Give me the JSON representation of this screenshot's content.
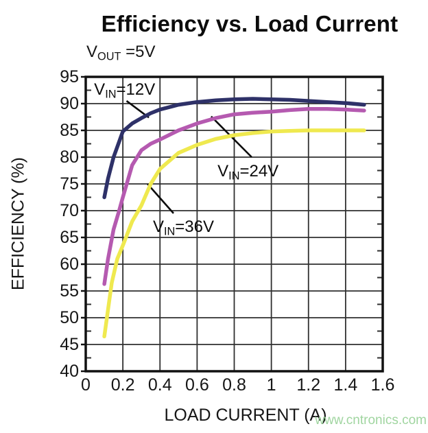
{
  "page": {
    "title": "Efficiency vs. Load Current",
    "subtitle": {
      "base": "V",
      "subscript": "OUT",
      "rest": " =5V"
    },
    "watermark": "www.cntronics.com"
  },
  "colors": {
    "vin12": "#2e3168",
    "vin24": "#b55ab0",
    "vin36": "#efe94f",
    "grid": "#2f2f2f",
    "axis_border": "#111111",
    "leader_line": "#0c0c0c",
    "text": "#161616",
    "watermark": "#a0d5a0"
  },
  "chart_data": {
    "type": "line",
    "title": "Efficiency vs. Load Current",
    "subtitle": "VOUT =5V",
    "xlabel": "LOAD CURRENT (A)",
    "ylabel": "EFFICIENCY (%)",
    "xlim": [
      0,
      1.6
    ],
    "ylim": [
      40,
      95
    ],
    "x_ticks": [
      0,
      0.2,
      0.4,
      0.6,
      0.8,
      1,
      1.2,
      1.4,
      1.6
    ],
    "x_tick_labels": [
      "0",
      "0.2",
      "0.4",
      "0.6",
      "0.8",
      "1",
      "1.2",
      "1.4",
      "1.6"
    ],
    "y_ticks": [
      95,
      90,
      85,
      80,
      75,
      70,
      65,
      60,
      55,
      50,
      45,
      40
    ],
    "grid": true,
    "legend_position": "inline-annotations",
    "series": [
      {
        "name": "VIN=12V",
        "label": {
          "base": "V",
          "subscript": "IN",
          "rest": "=12V"
        },
        "color": "#2e3168",
        "x": [
          0.1,
          0.12,
          0.15,
          0.2,
          0.25,
          0.3,
          0.35,
          0.4,
          0.5,
          0.6,
          0.7,
          0.8,
          0.9,
          1.0,
          1.1,
          1.2,
          1.3,
          1.4,
          1.5
        ],
        "y": [
          72.5,
          76.0,
          80.0,
          84.8,
          86.3,
          87.3,
          88.2,
          88.9,
          89.8,
          90.3,
          90.6,
          90.8,
          90.9,
          90.8,
          90.7,
          90.5,
          90.3,
          90.1,
          89.8
        ]
      },
      {
        "name": "VIN=24V",
        "label": {
          "base": "V",
          "subscript": "IN",
          "rest": "=24V"
        },
        "color": "#b55ab0",
        "x": [
          0.1,
          0.12,
          0.15,
          0.18,
          0.2,
          0.25,
          0.3,
          0.35,
          0.4,
          0.5,
          0.6,
          0.7,
          0.8,
          0.9,
          1.0,
          1.1,
          1.2,
          1.3,
          1.4,
          1.5
        ],
        "y": [
          56.3,
          61.0,
          66.5,
          70.0,
          72.5,
          78.5,
          81.3,
          82.5,
          83.3,
          85.0,
          86.3,
          87.3,
          88.0,
          88.3,
          88.5,
          88.8,
          89.0,
          89.0,
          88.9,
          88.7
        ]
      },
      {
        "name": "VIN=36V",
        "label": {
          "base": "V",
          "subscript": "IN",
          "rest": "=36V"
        },
        "color": "#efe94f",
        "x": [
          0.1,
          0.12,
          0.14,
          0.17,
          0.2,
          0.25,
          0.3,
          0.35,
          0.4,
          0.5,
          0.6,
          0.7,
          0.8,
          0.9,
          1.0,
          1.1,
          1.2,
          1.3,
          1.4,
          1.5
        ],
        "y": [
          46.5,
          51.5,
          56.5,
          61.0,
          63.5,
          68.0,
          71.0,
          75.0,
          77.8,
          80.8,
          82.3,
          83.4,
          84.1,
          84.5,
          84.8,
          84.9,
          85.0,
          85.0,
          85.0,
          85.0
        ]
      }
    ],
    "annotations": [
      {
        "series": "VIN=12V",
        "label_pos": {
          "x": 0.045,
          "y": 94.3
        },
        "leader": [
          [
            0.22,
            90.5
          ],
          [
            0.34,
            87.4
          ]
        ]
      },
      {
        "series": "VIN=24V",
        "label_pos": {
          "x": 0.71,
          "y": 79.1
        },
        "leader": [
          [
            0.676,
            87.6
          ],
          [
            0.894,
            80.0
          ]
        ]
      },
      {
        "series": "VIN=36V",
        "label_pos": {
          "x": 0.362,
          "y": 68.7
        },
        "leader": [
          [
            0.333,
            75.0
          ],
          [
            0.473,
            69.5
          ]
        ]
      }
    ]
  }
}
